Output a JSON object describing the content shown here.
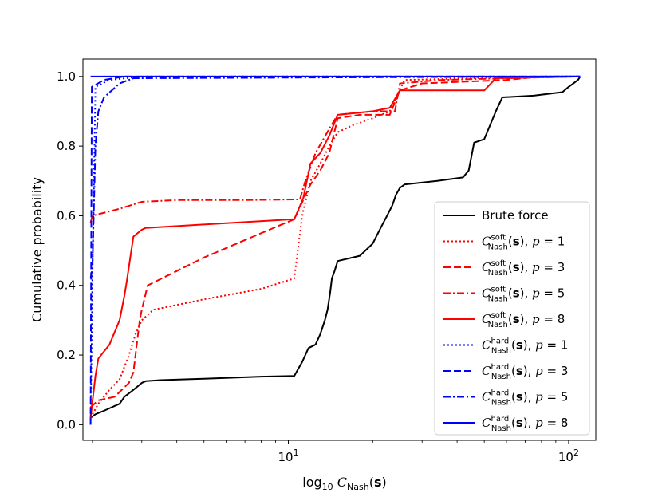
{
  "chart_data": {
    "type": "line",
    "title": "",
    "xlabel": "log₁₀ C_Nash(s)",
    "ylabel": "Cumulative probability",
    "xscale": "log",
    "xlim": [
      1.85,
      125
    ],
    "ylim": [
      -0.045,
      1.05
    ],
    "x_ticks": [
      {
        "value": 10,
        "label": "10",
        "exp": "1"
      },
      {
        "value": 100,
        "label": "10",
        "exp": "2"
      }
    ],
    "y_ticks": [
      {
        "value": 0.0,
        "label": "0.0"
      },
      {
        "value": 0.2,
        "label": "0.2"
      },
      {
        "value": 0.4,
        "label": "0.4"
      },
      {
        "value": 0.6,
        "label": "0.6"
      },
      {
        "value": 0.8,
        "label": "0.8"
      },
      {
        "value": 1.0,
        "label": "1.0"
      }
    ],
    "legend_position": "lower-right",
    "series": [
      {
        "name": "Brute force",
        "sup": "",
        "p": "",
        "color": "#000000",
        "dash": "solid",
        "points": [
          [
            1.97,
            0.02
          ],
          [
            2.05,
            0.03
          ],
          [
            2.2,
            0.04
          ],
          [
            2.5,
            0.06
          ],
          [
            2.6,
            0.08
          ],
          [
            2.7,
            0.09
          ],
          [
            2.8,
            0.1
          ],
          [
            2.9,
            0.11
          ],
          [
            3.0,
            0.12
          ],
          [
            3.1,
            0.125
          ],
          [
            3.5,
            0.128
          ],
          [
            5,
            0.132
          ],
          [
            8,
            0.138
          ],
          [
            10.5,
            0.14
          ],
          [
            11.2,
            0.18
          ],
          [
            11.8,
            0.22
          ],
          [
            12.5,
            0.23
          ],
          [
            13,
            0.26
          ],
          [
            13.5,
            0.3
          ],
          [
            13.8,
            0.33
          ],
          [
            14.1,
            0.38
          ],
          [
            14.3,
            0.42
          ],
          [
            14.6,
            0.44
          ],
          [
            15,
            0.47
          ],
          [
            18,
            0.485
          ],
          [
            20,
            0.52
          ],
          [
            21.5,
            0.57
          ],
          [
            22.5,
            0.6
          ],
          [
            23.5,
            0.63
          ],
          [
            24.2,
            0.66
          ],
          [
            25,
            0.68
          ],
          [
            26,
            0.69
          ],
          [
            34,
            0.7
          ],
          [
            42,
            0.71
          ],
          [
            44,
            0.73
          ],
          [
            46,
            0.81
          ],
          [
            50,
            0.82
          ],
          [
            55,
            0.9
          ],
          [
            58,
            0.94
          ],
          [
            75,
            0.945
          ],
          [
            95,
            0.955
          ],
          [
            100,
            0.97
          ],
          [
            108,
            0.99
          ],
          [
            110,
            1.0
          ]
        ]
      },
      {
        "name": "C",
        "sup": "soft",
        "p": "1",
        "color": "#ff0000",
        "dash": "dotted",
        "points": [
          [
            1.97,
            0.02
          ],
          [
            2.1,
            0.06
          ],
          [
            2.3,
            0.1
          ],
          [
            2.5,
            0.13
          ],
          [
            2.7,
            0.2
          ],
          [
            2.85,
            0.26
          ],
          [
            3.0,
            0.3
          ],
          [
            3.3,
            0.33
          ],
          [
            5,
            0.36
          ],
          [
            8,
            0.39
          ],
          [
            10.5,
            0.42
          ],
          [
            11.2,
            0.6
          ],
          [
            12,
            0.7
          ],
          [
            13,
            0.75
          ],
          [
            14,
            0.8
          ],
          [
            15,
            0.84
          ],
          [
            17,
            0.86
          ],
          [
            20,
            0.88
          ],
          [
            23,
            0.9
          ],
          [
            26,
            0.99
          ],
          [
            45,
            0.995
          ],
          [
            70,
            1.0
          ],
          [
            110,
            1.0
          ]
        ]
      },
      {
        "name": "C",
        "sup": "soft",
        "p": "3",
        "color": "#ff0000",
        "dash": "dashed",
        "points": [
          [
            1.97,
            0.05
          ],
          [
            2.1,
            0.07
          ],
          [
            2.4,
            0.08
          ],
          [
            2.7,
            0.12
          ],
          [
            2.8,
            0.15
          ],
          [
            2.95,
            0.3
          ],
          [
            3.0,
            0.33
          ],
          [
            3.15,
            0.4
          ],
          [
            5,
            0.48
          ],
          [
            8,
            0.55
          ],
          [
            10.5,
            0.59
          ],
          [
            12,
            0.69
          ],
          [
            13,
            0.73
          ],
          [
            14,
            0.78
          ],
          [
            15,
            0.88
          ],
          [
            18,
            0.89
          ],
          [
            23,
            0.89
          ],
          [
            25,
            0.96
          ],
          [
            30,
            0.98
          ],
          [
            60,
            0.99
          ],
          [
            80,
            1.0
          ],
          [
            110,
            1.0
          ]
        ]
      },
      {
        "name": "C",
        "sup": "soft",
        "p": "5",
        "color": "#ff0000",
        "dash": "dashdot",
        "points": [
          [
            1.97,
            0.58
          ],
          [
            2.0,
            0.6
          ],
          [
            2.5,
            0.62
          ],
          [
            3.0,
            0.64
          ],
          [
            4,
            0.645
          ],
          [
            7,
            0.645
          ],
          [
            11,
            0.647
          ],
          [
            11.5,
            0.7
          ],
          [
            12.5,
            0.78
          ],
          [
            14,
            0.85
          ],
          [
            15,
            0.89
          ],
          [
            20,
            0.9
          ],
          [
            24,
            0.9
          ],
          [
            25,
            0.98
          ],
          [
            35,
            0.99
          ],
          [
            60,
            0.995
          ],
          [
            110,
            1.0
          ]
        ]
      },
      {
        "name": "C",
        "sup": "soft",
        "p": "8",
        "color": "#ff0000",
        "dash": "solid",
        "points": [
          [
            1.97,
            0.02
          ],
          [
            2.05,
            0.14
          ],
          [
            2.1,
            0.19
          ],
          [
            2.3,
            0.23
          ],
          [
            2.5,
            0.3
          ],
          [
            2.6,
            0.37
          ],
          [
            2.65,
            0.41
          ],
          [
            2.8,
            0.54
          ],
          [
            3.0,
            0.56
          ],
          [
            3.1,
            0.565
          ],
          [
            5,
            0.575
          ],
          [
            10.5,
            0.59
          ],
          [
            11.3,
            0.65
          ],
          [
            12,
            0.75
          ],
          [
            13,
            0.78
          ],
          [
            14,
            0.83
          ],
          [
            15,
            0.89
          ],
          [
            20,
            0.9
          ],
          [
            23,
            0.91
          ],
          [
            25,
            0.96
          ],
          [
            35,
            0.96
          ],
          [
            50,
            0.96
          ],
          [
            55,
            0.995
          ],
          [
            110,
            1.0
          ]
        ]
      },
      {
        "name": "C",
        "sup": "hard",
        "p": "1",
        "color": "#0000ff",
        "dash": "dotted",
        "points": [
          [
            1.97,
            0.0
          ],
          [
            2.0,
            0.42
          ],
          [
            2.05,
            0.97
          ],
          [
            2.3,
            0.99
          ],
          [
            3.0,
            1.0
          ],
          [
            110,
            1.0
          ]
        ]
      },
      {
        "name": "C",
        "sup": "hard",
        "p": "3",
        "color": "#0000ff",
        "dash": "dashed",
        "points": [
          [
            1.97,
            0.0
          ],
          [
            1.99,
            0.97
          ],
          [
            2.2,
            0.99
          ],
          [
            2.6,
            1.0
          ],
          [
            110,
            1.0
          ]
        ]
      },
      {
        "name": "C",
        "sup": "hard",
        "p": "5",
        "color": "#0000ff",
        "dash": "dashdot",
        "points": [
          [
            1.97,
            0.42
          ],
          [
            2.0,
            0.45
          ],
          [
            2.05,
            0.8
          ],
          [
            2.1,
            0.9
          ],
          [
            2.2,
            0.94
          ],
          [
            2.5,
            0.98
          ],
          [
            2.8,
            0.995
          ],
          [
            110,
            1.0
          ]
        ]
      },
      {
        "name": "C",
        "sup": "hard",
        "p": "8",
        "color": "#0000ff",
        "dash": "solid",
        "points": [
          [
            1.97,
            1.0
          ],
          [
            110,
            1.0
          ]
        ]
      }
    ]
  }
}
